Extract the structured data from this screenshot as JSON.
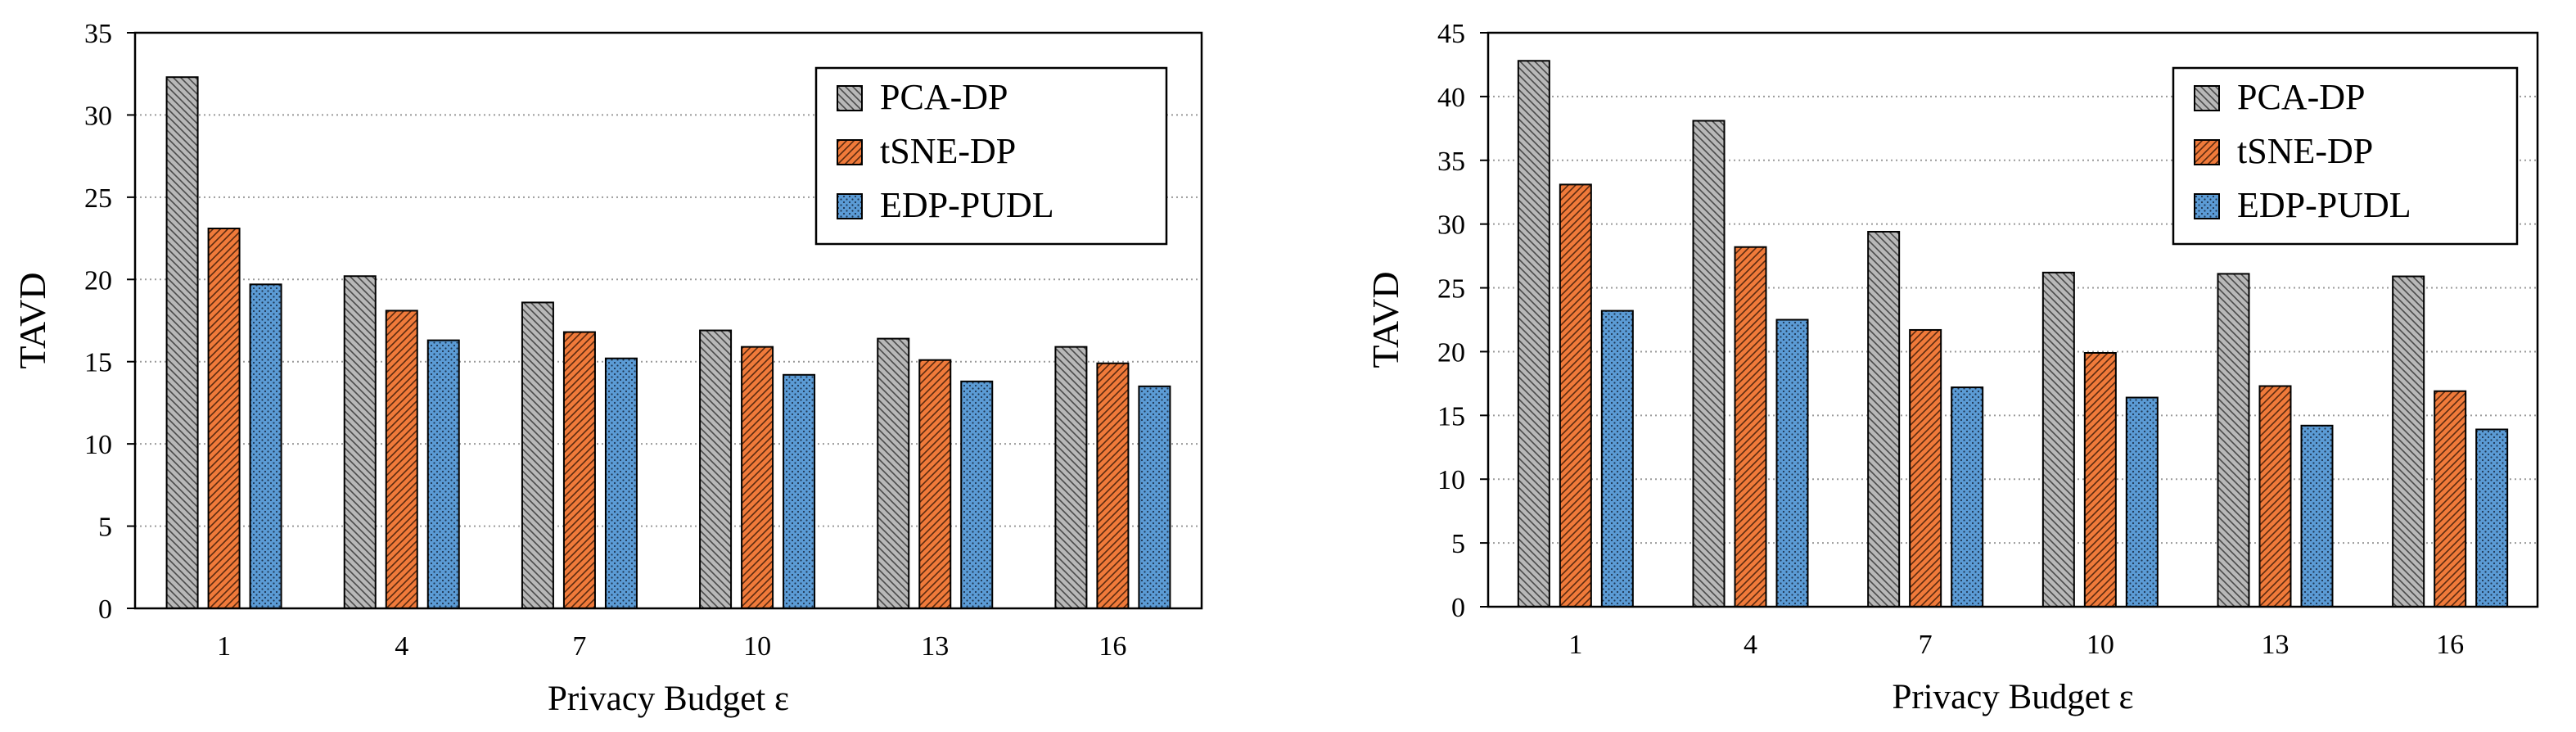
{
  "chart_data": [
    {
      "type": "bar",
      "title": "",
      "xlabel": "Privacy Budget ε",
      "ylabel": "TAVD",
      "categories": [
        "1",
        "4",
        "7",
        "10",
        "13",
        "16"
      ],
      "ylim": [
        0,
        35
      ],
      "yticks": [
        "0",
        "5",
        "10",
        "15",
        "20",
        "25",
        "30",
        "35"
      ],
      "grid": "horizontal dotted",
      "legend_position": "top-right",
      "series": [
        {
          "name": "PCA-DP",
          "values": [
            32.3,
            20.2,
            18.6,
            16.9,
            16.4,
            15.9
          ],
          "color": "#b8b8b8",
          "pattern": "backslash-hatch"
        },
        {
          "name": "tSNE-DP",
          "values": [
            23.1,
            18.1,
            16.8,
            15.9,
            15.1,
            14.9
          ],
          "color": "#f07a3a",
          "pattern": "slash-hatch"
        },
        {
          "name": "EDP-PUDL",
          "values": [
            19.7,
            16.3,
            15.2,
            14.2,
            13.8,
            13.5
          ],
          "color": "#5b9bd5",
          "pattern": "dots"
        }
      ]
    },
    {
      "type": "bar",
      "title": "",
      "xlabel": "Privacy Budget ε",
      "ylabel": "TAVD",
      "categories": [
        "1",
        "4",
        "7",
        "10",
        "13",
        "16"
      ],
      "ylim": [
        0,
        45
      ],
      "yticks": [
        "0",
        "5",
        "10",
        "15",
        "20",
        "25",
        "30",
        "35",
        "40",
        "45"
      ],
      "grid": "horizontal dotted",
      "legend_position": "top-right",
      "series": [
        {
          "name": "PCA-DP",
          "values": [
            42.8,
            38.1,
            29.4,
            26.2,
            26.1,
            25.9
          ],
          "color": "#b8b8b8",
          "pattern": "backslash-hatch"
        },
        {
          "name": "tSNE-DP",
          "values": [
            33.1,
            28.2,
            21.7,
            19.9,
            17.3,
            16.9
          ],
          "color": "#f07a3a",
          "pattern": "slash-hatch"
        },
        {
          "name": "EDP-PUDL",
          "values": [
            23.2,
            22.5,
            17.2,
            16.4,
            14.2,
            13.9
          ],
          "color": "#5b9bd5",
          "pattern": "dots"
        }
      ]
    }
  ]
}
